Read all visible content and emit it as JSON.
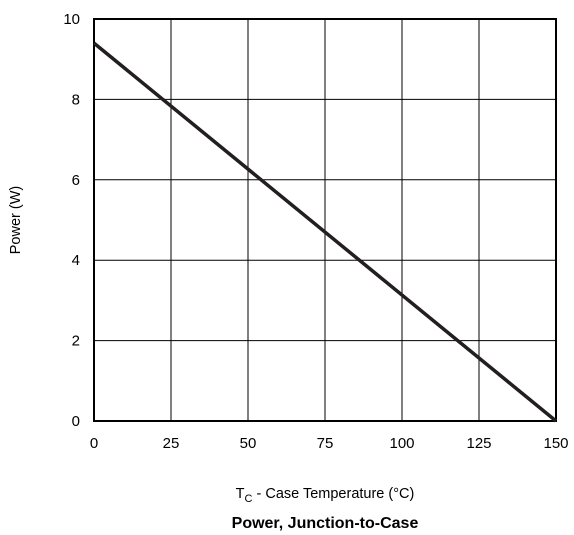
{
  "chart_data": {
    "type": "line",
    "title": "Power, Junction-to-Case",
    "xlabel": {
      "prefix": "T",
      "subscript": "C",
      "rest": " - Case Temperature (°C)"
    },
    "ylabel": "Power (W)",
    "xlim": [
      0,
      150
    ],
    "ylim": [
      0,
      10
    ],
    "x_ticks": [
      "0",
      "25",
      "50",
      "75",
      "100",
      "125",
      "150"
    ],
    "y_ticks": [
      "0",
      "2",
      "4",
      "6",
      "8",
      "10"
    ],
    "grid": true,
    "series": [
      {
        "x": [
          0,
          150
        ],
        "y": [
          9.4,
          0
        ]
      }
    ],
    "colors": {
      "line": "#231f20",
      "grid": "#000000",
      "frame": "#000000"
    }
  }
}
